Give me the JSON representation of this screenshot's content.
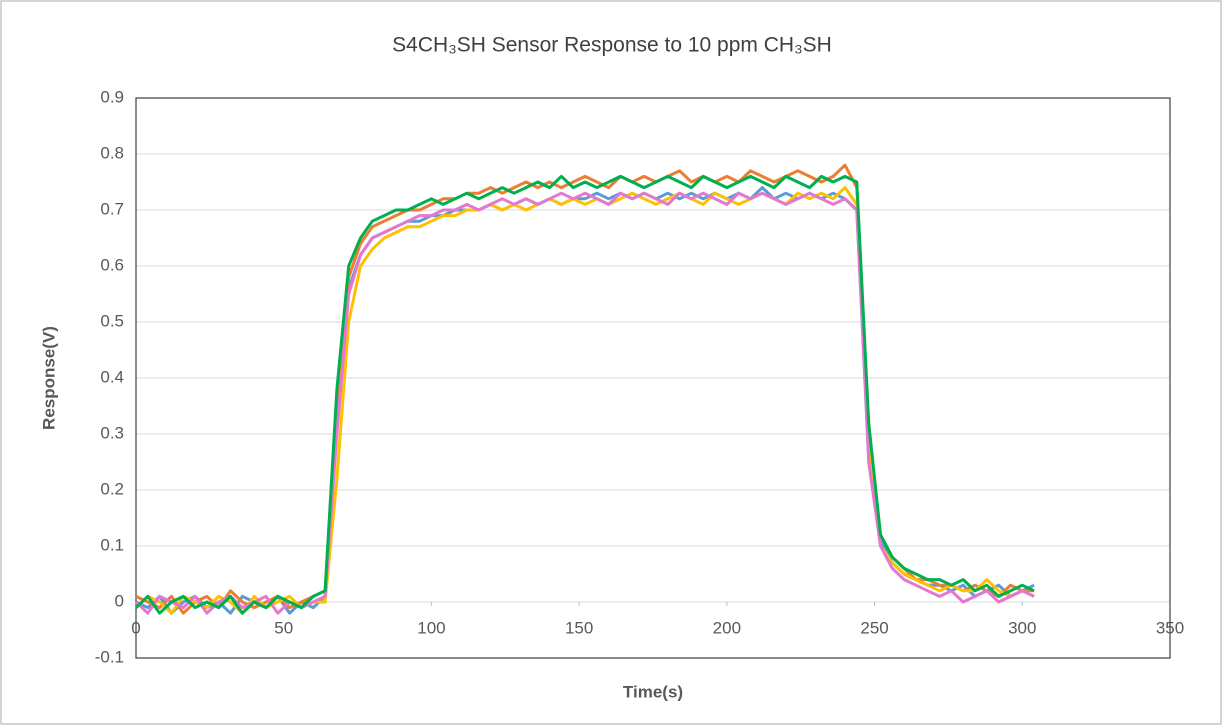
{
  "chart_data": {
    "type": "line",
    "title": "S4CH₃SH Sensor Response to 10 ppm CH₃SH",
    "xlabel": "Time(s)",
    "ylabel": "Response(V)",
    "xlim": [
      0,
      350
    ],
    "xticks": [
      0,
      50,
      100,
      150,
      200,
      250,
      300,
      350
    ],
    "ylim": [
      -0.1,
      0.9
    ],
    "yticks": [
      -0.1,
      0,
      0.1,
      0.2,
      0.3,
      0.4,
      0.5,
      0.6,
      0.7,
      0.8,
      0.9
    ],
    "grid": true,
    "x": [
      0,
      4,
      8,
      12,
      16,
      20,
      24,
      28,
      32,
      36,
      40,
      44,
      48,
      52,
      56,
      60,
      64,
      68,
      72,
      76,
      80,
      84,
      88,
      92,
      96,
      100,
      104,
      108,
      112,
      116,
      120,
      124,
      128,
      132,
      136,
      140,
      144,
      148,
      152,
      156,
      160,
      164,
      168,
      172,
      176,
      180,
      184,
      188,
      192,
      196,
      200,
      204,
      208,
      212,
      216,
      220,
      224,
      228,
      232,
      236,
      240,
      244,
      248,
      252,
      256,
      260,
      264,
      268,
      272,
      276,
      280,
      284,
      288,
      292,
      296,
      300,
      304
    ],
    "series": [
      {
        "color": "#5b9bd5",
        "values": [
          0,
          -0.01,
          0.01,
          -0.02,
          0,
          0.01,
          -0.01,
          0,
          -0.02,
          0.01,
          0,
          -0.01,
          0.01,
          -0.02,
          0,
          -0.01,
          0.01,
          0.32,
          0.56,
          0.62,
          0.65,
          0.66,
          0.67,
          0.68,
          0.68,
          0.69,
          0.69,
          0.7,
          0.7,
          0.7,
          0.71,
          0.7,
          0.71,
          0.72,
          0.71,
          0.72,
          0.71,
          0.72,
          0.72,
          0.73,
          0.72,
          0.73,
          0.72,
          0.73,
          0.72,
          0.73,
          0.72,
          0.73,
          0.72,
          0.73,
          0.72,
          0.73,
          0.72,
          0.74,
          0.72,
          0.73,
          0.72,
          0.73,
          0.72,
          0.73,
          0.72,
          0.7,
          0.26,
          0.11,
          0.07,
          0.05,
          0.04,
          0.03,
          0.03,
          0.02,
          0.03,
          0.01,
          0.02,
          0.03,
          0.01,
          0.02,
          0.03
        ]
      },
      {
        "color": "#ed7d31",
        "values": [
          0.01,
          0,
          -0.01,
          0.01,
          -0.02,
          0,
          0.01,
          -0.01,
          0.02,
          0,
          -0.01,
          0,
          0.01,
          -0.01,
          0,
          0.01,
          0.02,
          0.36,
          0.58,
          0.64,
          0.67,
          0.68,
          0.69,
          0.7,
          0.7,
          0.71,
          0.72,
          0.72,
          0.73,
          0.73,
          0.74,
          0.73,
          0.74,
          0.75,
          0.74,
          0.75,
          0.74,
          0.75,
          0.76,
          0.75,
          0.74,
          0.76,
          0.75,
          0.76,
          0.75,
          0.76,
          0.77,
          0.75,
          0.76,
          0.75,
          0.76,
          0.75,
          0.77,
          0.76,
          0.75,
          0.76,
          0.77,
          0.76,
          0.75,
          0.76,
          0.78,
          0.74,
          0.3,
          0.12,
          0.08,
          0.06,
          0.04,
          0.04,
          0.03,
          0.03,
          0.02,
          0.03,
          0.02,
          0.01,
          0.03,
          0.02,
          0.02
        ]
      },
      {
        "color": "#ffc000",
        "values": [
          -0.01,
          0.01,
          0,
          -0.02,
          0.01,
          0,
          -0.01,
          0.01,
          0,
          -0.02,
          0.01,
          -0.01,
          0,
          0.01,
          -0.01,
          0,
          0,
          0.22,
          0.5,
          0.6,
          0.63,
          0.65,
          0.66,
          0.67,
          0.67,
          0.68,
          0.69,
          0.69,
          0.7,
          0.7,
          0.71,
          0.7,
          0.71,
          0.7,
          0.71,
          0.72,
          0.71,
          0.72,
          0.71,
          0.72,
          0.71,
          0.72,
          0.73,
          0.72,
          0.71,
          0.72,
          0.73,
          0.72,
          0.71,
          0.73,
          0.72,
          0.71,
          0.72,
          0.73,
          0.72,
          0.71,
          0.73,
          0.72,
          0.73,
          0.72,
          0.74,
          0.71,
          0.28,
          0.1,
          0.07,
          0.05,
          0.04,
          0.03,
          0.02,
          0.03,
          0.02,
          0.02,
          0.04,
          0.02,
          0.01,
          0.02,
          0.01
        ]
      },
      {
        "color": "#e377d2",
        "values": [
          0,
          -0.02,
          0.01,
          0,
          -0.01,
          0.01,
          -0.02,
          0,
          0.01,
          -0.01,
          0,
          0.01,
          -0.02,
          0,
          -0.01,
          0,
          0.01,
          0.3,
          0.55,
          0.62,
          0.65,
          0.66,
          0.67,
          0.68,
          0.69,
          0.69,
          0.7,
          0.7,
          0.71,
          0.7,
          0.71,
          0.72,
          0.71,
          0.72,
          0.71,
          0.72,
          0.73,
          0.72,
          0.73,
          0.72,
          0.71,
          0.73,
          0.72,
          0.73,
          0.72,
          0.71,
          0.73,
          0.72,
          0.73,
          0.72,
          0.71,
          0.73,
          0.72,
          0.73,
          0.72,
          0.71,
          0.72,
          0.73,
          0.72,
          0.71,
          0.72,
          0.7,
          0.25,
          0.1,
          0.06,
          0.04,
          0.03,
          0.02,
          0.01,
          0.02,
          0,
          0.01,
          0.02,
          0,
          0.01,
          0.02,
          0.01
        ]
      },
      {
        "color": "#00b050",
        "values": [
          -0.01,
          0.01,
          -0.02,
          0,
          0.01,
          -0.01,
          0,
          -0.01,
          0.01,
          -0.02,
          0,
          -0.01,
          0.01,
          0,
          -0.01,
          0.01,
          0.02,
          0.38,
          0.6,
          0.65,
          0.68,
          0.69,
          0.7,
          0.7,
          0.71,
          0.72,
          0.71,
          0.72,
          0.73,
          0.72,
          0.73,
          0.74,
          0.73,
          0.74,
          0.75,
          0.74,
          0.76,
          0.74,
          0.75,
          0.74,
          0.75,
          0.76,
          0.75,
          0.74,
          0.75,
          0.76,
          0.75,
          0.74,
          0.76,
          0.75,
          0.74,
          0.75,
          0.76,
          0.75,
          0.74,
          0.76,
          0.75,
          0.74,
          0.76,
          0.75,
          0.76,
          0.75,
          0.32,
          0.12,
          0.08,
          0.06,
          0.05,
          0.04,
          0.04,
          0.03,
          0.04,
          0.02,
          0.03,
          0.01,
          0.02,
          0.03,
          0.02
        ]
      }
    ]
  }
}
